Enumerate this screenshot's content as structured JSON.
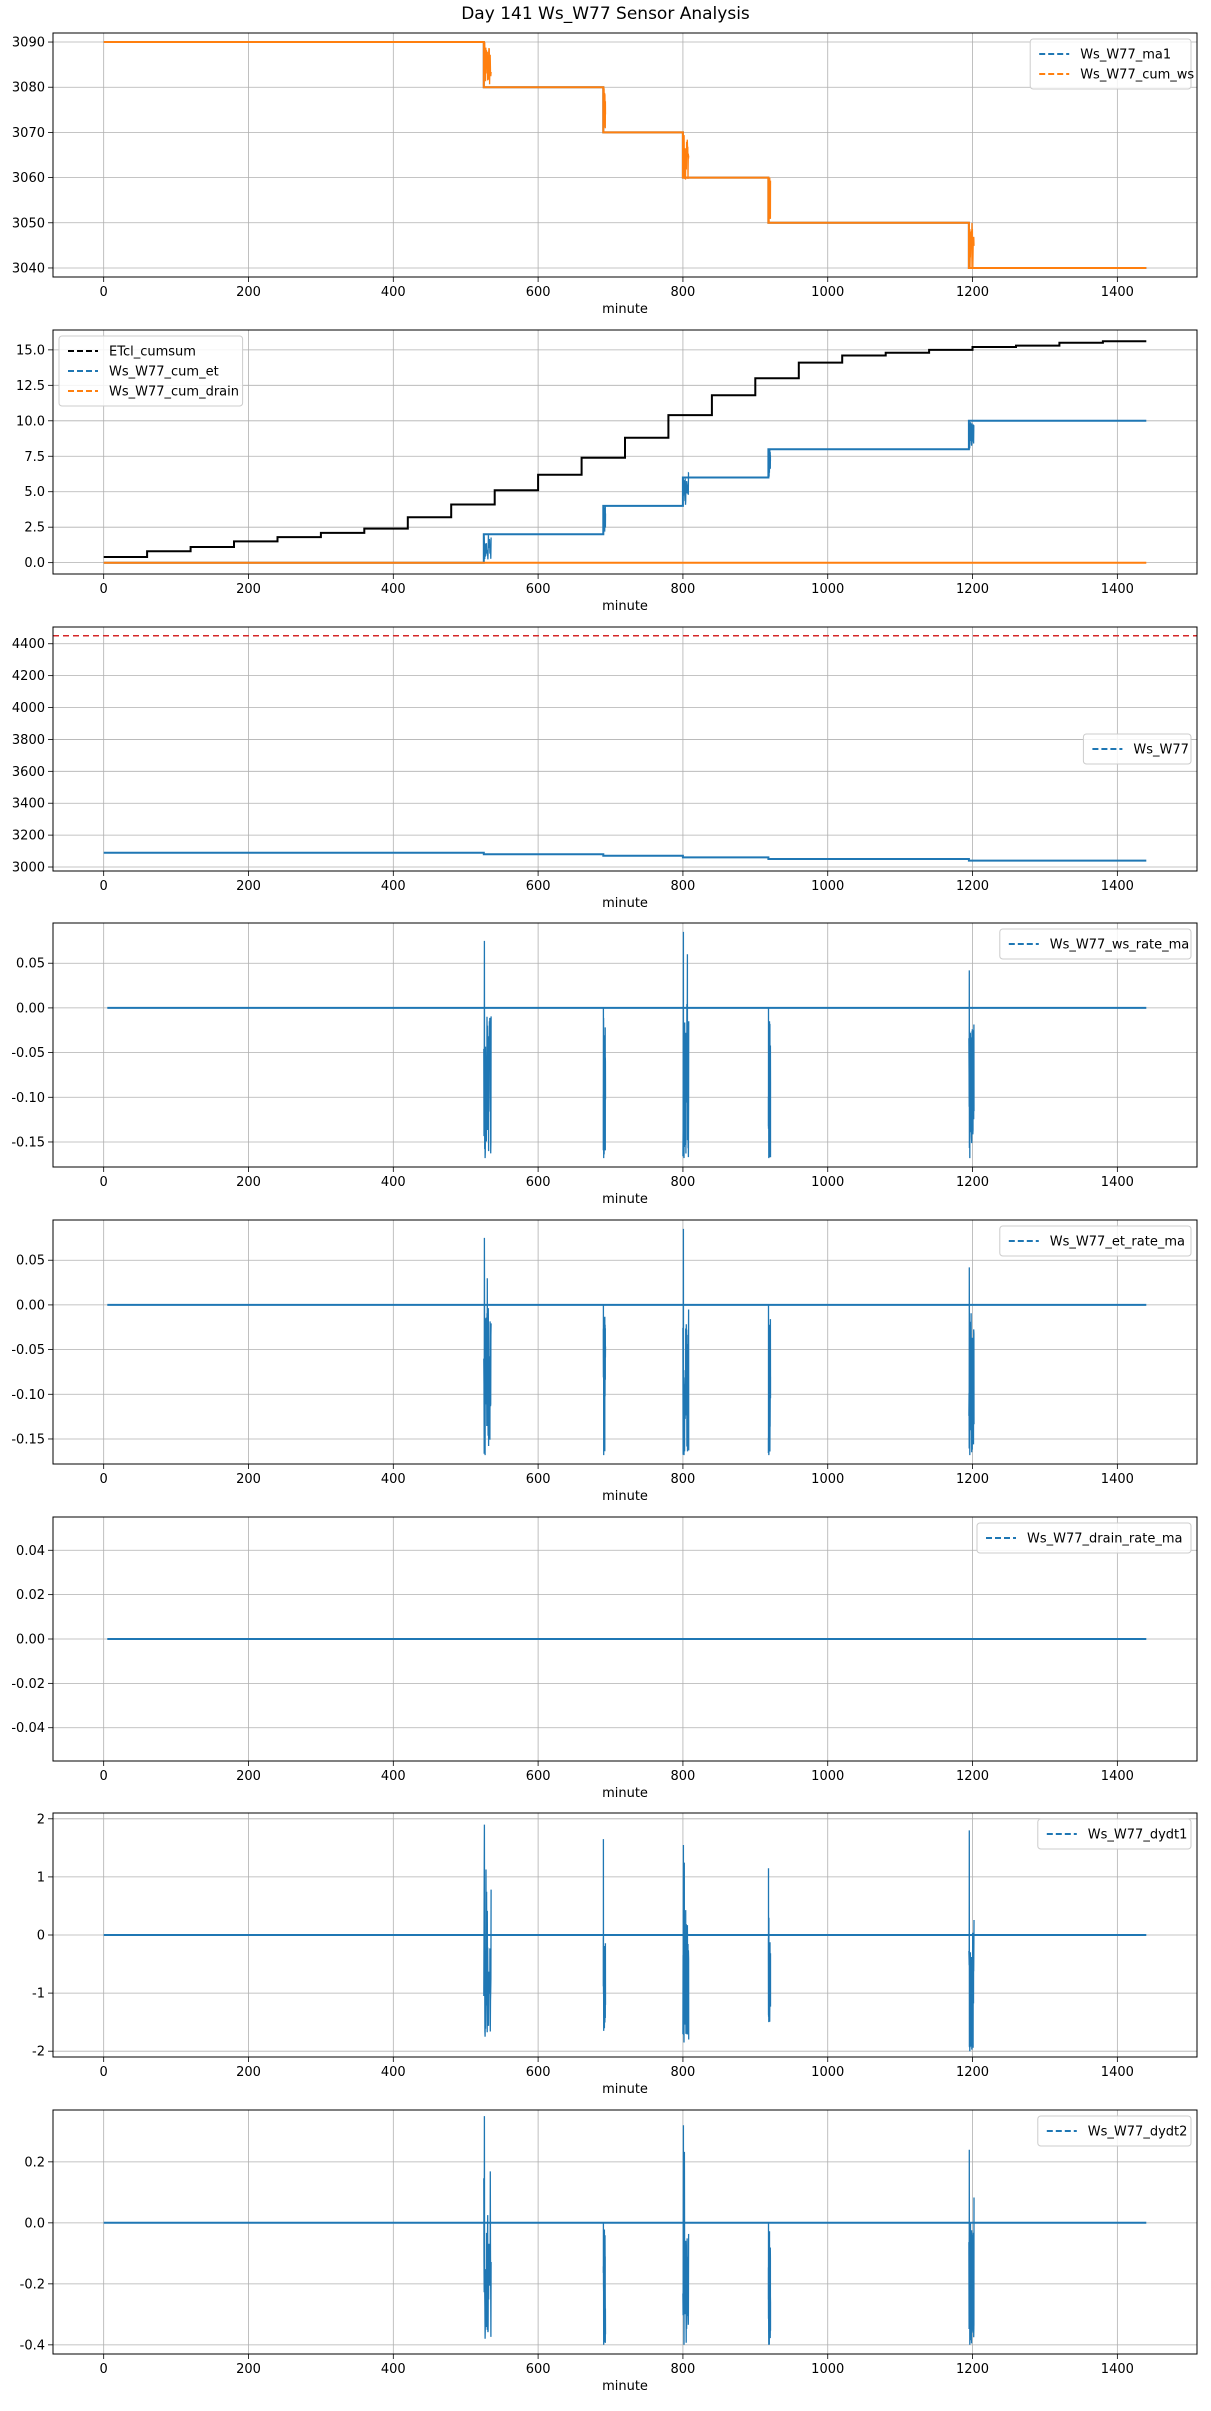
{
  "figure_title": "Day 141 Ws_W77 Sensor Analysis",
  "colors": {
    "blue": "#1f77b4",
    "orange": "#ff7f0e",
    "black": "#000000",
    "red": "#d62728",
    "grid": "#b0b0b0"
  },
  "chart_data": [
    {
      "type": "line",
      "xlabel": "minute",
      "ylabel": "",
      "xlim": [
        -70,
        1510
      ],
      "ylim": [
        3038,
        3092
      ],
      "xticks": [
        0,
        200,
        400,
        600,
        800,
        1000,
        1200,
        1400
      ],
      "yticks": [
        3040,
        3050,
        3060,
        3070,
        3080,
        3090
      ],
      "ytick_labels": [
        "3040",
        "3050",
        "3060",
        "3070",
        "3080",
        "3090"
      ],
      "grid": true,
      "legend_position": "upper-right",
      "series": [
        {
          "name": "Ws_W77_ma1",
          "color": "#1f77b4",
          "style": "dashed",
          "x": [
            0,
            525,
            525,
            690,
            690,
            800,
            800,
            918,
            918,
            1195,
            1195,
            1440
          ],
          "y": [
            3090,
            3090,
            3080,
            3080,
            3070,
            3070,
            3060,
            3060,
            3050,
            3050,
            3040,
            3040
          ]
        },
        {
          "name": "Ws_W77_cum_ws",
          "color": "#ff7f0e",
          "style": "dashed",
          "x": [
            0,
            525,
            525,
            690,
            690,
            800,
            800,
            918,
            918,
            1195,
            1195,
            1440
          ],
          "y": [
            3090,
            3090,
            3080,
            3080,
            3070,
            3070,
            3060,
            3060,
            3050,
            3050,
            3040,
            3040
          ],
          "noise_segments": [
            {
              "x": [
                525,
                535
              ],
              "y": [
                3079.5,
                3090
              ]
            },
            {
              "x": [
                690,
                693
              ],
              "y": [
                3070,
                3080
              ]
            },
            {
              "x": [
                800,
                808
              ],
              "y": [
                3059.5,
                3070
              ]
            },
            {
              "x": [
                918,
                921
              ],
              "y": [
                3050,
                3060
              ]
            },
            {
              "x": [
                1195,
                1202
              ],
              "y": [
                3040,
                3050
              ]
            }
          ]
        }
      ]
    },
    {
      "type": "line",
      "xlabel": "minute",
      "ylabel": "",
      "xlim": [
        -70,
        1510
      ],
      "ylim": [
        -0.8,
        16.4
      ],
      "xticks": [
        0,
        200,
        400,
        600,
        800,
        1000,
        1200,
        1400
      ],
      "yticks": [
        0,
        2.5,
        5,
        7.5,
        10,
        12.5,
        15
      ],
      "ytick_labels": [
        "0.0",
        "2.5",
        "5.0",
        "7.5",
        "10.0",
        "12.5",
        "15.0"
      ],
      "grid": true,
      "legend_position": "upper-left",
      "series": [
        {
          "name": "ETcl_cumsum",
          "color": "#000000",
          "style": "dashed",
          "x": [
            0,
            60,
            60,
            120,
            120,
            180,
            180,
            240,
            240,
            300,
            300,
            360,
            360,
            420,
            420,
            480,
            480,
            540,
            540,
            600,
            600,
            660,
            660,
            720,
            720,
            780,
            780,
            840,
            840,
            900,
            900,
            960,
            960,
            1020,
            1020,
            1080,
            1080,
            1140,
            1140,
            1200,
            1200,
            1260,
            1260,
            1320,
            1320,
            1380,
            1380,
            1440
          ],
          "y": [
            0.4,
            0.4,
            0.8,
            0.8,
            1.1,
            1.1,
            1.5,
            1.5,
            1.8,
            1.8,
            2.1,
            2.1,
            2.4,
            2.4,
            3.2,
            3.2,
            4.1,
            4.1,
            5.1,
            5.1,
            6.2,
            6.2,
            7.4,
            7.4,
            8.8,
            8.8,
            10.4,
            10.4,
            11.8,
            11.8,
            13.0,
            13.0,
            14.1,
            14.1,
            14.6,
            14.6,
            14.8,
            14.8,
            15.0,
            15.0,
            15.2,
            15.2,
            15.3,
            15.3,
            15.5,
            15.5,
            15.6,
            15.6
          ]
        },
        {
          "name": "Ws_W77_cum_et",
          "color": "#1f77b4",
          "style": "dashed",
          "x": [
            0,
            525,
            525,
            690,
            690,
            800,
            800,
            918,
            918,
            1195,
            1195,
            1440
          ],
          "y": [
            0,
            0,
            2,
            2,
            4,
            4,
            6,
            6,
            8,
            8,
            10,
            10
          ],
          "noise_segments": [
            {
              "x": [
                525,
                535
              ],
              "y": [
                0,
                2
              ]
            },
            {
              "x": [
                690,
                693
              ],
              "y": [
                2,
                4
              ]
            },
            {
              "x": [
                800,
                808
              ],
              "y": [
                4,
                6.5
              ]
            },
            {
              "x": [
                918,
                921
              ],
              "y": [
                6,
                8
              ]
            },
            {
              "x": [
                1195,
                1202
              ],
              "y": [
                8,
                10
              ]
            }
          ]
        },
        {
          "name": "Ws_W77_cum_drain",
          "color": "#ff7f0e",
          "style": "dashed",
          "x": [
            0,
            1440
          ],
          "y": [
            0,
            0
          ]
        }
      ]
    },
    {
      "type": "line",
      "xlabel": "minute",
      "ylabel": "",
      "xlim": [
        -70,
        1510
      ],
      "ylim": [
        2975,
        4505
      ],
      "xticks": [
        0,
        200,
        400,
        600,
        800,
        1000,
        1200,
        1400
      ],
      "yticks": [
        3000,
        3200,
        3400,
        3600,
        3800,
        4000,
        4200,
        4400
      ],
      "ytick_labels": [
        "3000",
        "3200",
        "3400",
        "3600",
        "3800",
        "4000",
        "4200",
        "4400"
      ],
      "grid": true,
      "legend_position": "center-right",
      "hline": {
        "y": 4450,
        "color": "#d62728",
        "style": "dashed"
      },
      "series": [
        {
          "name": "Ws_W77",
          "color": "#1f77b4",
          "style": "dashed",
          "x": [
            0,
            525,
            525,
            690,
            690,
            800,
            800,
            918,
            918,
            1195,
            1195,
            1440
          ],
          "y": [
            3090,
            3090,
            3080,
            3080,
            3070,
            3070,
            3060,
            3060,
            3050,
            3050,
            3040,
            3040
          ]
        }
      ]
    },
    {
      "type": "line",
      "xlabel": "minute",
      "ylabel": "",
      "xlim": [
        -70,
        1510
      ],
      "ylim": [
        -0.178,
        0.095
      ],
      "xticks": [
        0,
        200,
        400,
        600,
        800,
        1000,
        1200,
        1400
      ],
      "yticks": [
        -0.15,
        -0.1,
        -0.05,
        0.0,
        0.05
      ],
      "ytick_labels": [
        "-0.15",
        "-0.10",
        "-0.05",
        "0.00",
        "0.05"
      ],
      "grid": true,
      "legend_position": "upper-right",
      "series": [
        {
          "name": "Ws_W77_ws_rate_ma",
          "color": "#1f77b4",
          "style": "dashed",
          "x": [
            5,
            1440
          ],
          "y": [
            0,
            0
          ],
          "spikes": [
            {
              "x": [
                525,
                535
              ],
              "ymin": -0.168,
              "ymax": 0.075
            },
            {
              "x": [
                690,
                693
              ],
              "ymin": -0.168,
              "ymax": 0.0
            },
            {
              "x": [
                800,
                808
              ],
              "ymin": -0.168,
              "ymax": 0.085
            },
            {
              "x": [
                918,
                921
              ],
              "ymin": -0.168,
              "ymax": 0.0
            },
            {
              "x": [
                1195,
                1202
              ],
              "ymin": -0.168,
              "ymax": 0.042
            }
          ]
        }
      ]
    },
    {
      "type": "line",
      "xlabel": "minute",
      "ylabel": "",
      "xlim": [
        -70,
        1510
      ],
      "ylim": [
        -0.178,
        0.095
      ],
      "xticks": [
        0,
        200,
        400,
        600,
        800,
        1000,
        1200,
        1400
      ],
      "yticks": [
        -0.15,
        -0.1,
        -0.05,
        0.0,
        0.05
      ],
      "ytick_labels": [
        "-0.15",
        "-0.10",
        "-0.05",
        "0.00",
        "0.05"
      ],
      "grid": true,
      "legend_position": "upper-right",
      "series": [
        {
          "name": "Ws_W77_et_rate_ma",
          "color": "#1f77b4",
          "style": "dashed",
          "x": [
            5,
            1440
          ],
          "y": [
            0,
            0
          ],
          "spikes": [
            {
              "x": [
                525,
                535
              ],
              "ymin": -0.168,
              "ymax": 0.075
            },
            {
              "x": [
                690,
                693
              ],
              "ymin": -0.168,
              "ymax": 0.0
            },
            {
              "x": [
                800,
                808
              ],
              "ymin": -0.168,
              "ymax": 0.085
            },
            {
              "x": [
                918,
                921
              ],
              "ymin": -0.168,
              "ymax": 0.0
            },
            {
              "x": [
                1195,
                1202
              ],
              "ymin": -0.168,
              "ymax": 0.042
            }
          ]
        }
      ]
    },
    {
      "type": "line",
      "xlabel": "minute",
      "ylabel": "",
      "xlim": [
        -70,
        1510
      ],
      "ylim": [
        -0.055,
        0.055
      ],
      "xticks": [
        0,
        200,
        400,
        600,
        800,
        1000,
        1200,
        1400
      ],
      "yticks": [
        -0.04,
        -0.02,
        0.0,
        0.02,
        0.04
      ],
      "ytick_labels": [
        "-0.04",
        "-0.02",
        "0.00",
        "0.02",
        "0.04"
      ],
      "grid": true,
      "legend_position": "upper-right",
      "series": [
        {
          "name": "Ws_W77_drain_rate_ma",
          "color": "#1f77b4",
          "style": "dashed",
          "x": [
            5,
            1440
          ],
          "y": [
            0,
            0
          ]
        }
      ]
    },
    {
      "type": "line",
      "xlabel": "minute",
      "ylabel": "",
      "xlim": [
        -70,
        1510
      ],
      "ylim": [
        -2.1,
        2.1
      ],
      "xticks": [
        0,
        200,
        400,
        600,
        800,
        1000,
        1200,
        1400
      ],
      "yticks": [
        -2,
        -1,
        0,
        1,
        2
      ],
      "ytick_labels": [
        "-2",
        "-1",
        "0",
        "1",
        "2"
      ],
      "grid": true,
      "legend_position": "upper-right",
      "series": [
        {
          "name": "Ws_W77_dydt1",
          "color": "#1f77b4",
          "style": "dashed",
          "x": [
            0,
            1440
          ],
          "y": [
            0,
            0
          ],
          "spikes": [
            {
              "x": [
                525,
                535
              ],
              "ymin": -1.75,
              "ymax": 1.9
            },
            {
              "x": [
                690,
                693
              ],
              "ymin": -1.65,
              "ymax": 1.65
            },
            {
              "x": [
                800,
                808
              ],
              "ymin": -1.85,
              "ymax": 1.55
            },
            {
              "x": [
                918,
                921
              ],
              "ymin": -1.5,
              "ymax": 1.15
            },
            {
              "x": [
                1195,
                1202
              ],
              "ymin": -2.0,
              "ymax": 1.8
            }
          ]
        }
      ]
    },
    {
      "type": "line",
      "xlabel": "minute",
      "ylabel": "",
      "xlim": [
        -70,
        1510
      ],
      "ylim": [
        -0.43,
        0.37
      ],
      "xticks": [
        0,
        200,
        400,
        600,
        800,
        1000,
        1200,
        1400
      ],
      "yticks": [
        -0.4,
        -0.2,
        0.0,
        0.2
      ],
      "ytick_labels": [
        "-0.4",
        "-0.2",
        "0.0",
        "0.2"
      ],
      "grid": true,
      "legend_position": "upper-right",
      "series": [
        {
          "name": "Ws_W77_dydt2",
          "color": "#1f77b4",
          "style": "dashed",
          "x": [
            0,
            1440
          ],
          "y": [
            0,
            0
          ],
          "spikes": [
            {
              "x": [
                525,
                535
              ],
              "ymin": -0.38,
              "ymax": 0.35
            },
            {
              "x": [
                690,
                693
              ],
              "ymin": -0.4,
              "ymax": 0.0
            },
            {
              "x": [
                800,
                808
              ],
              "ymin": -0.4,
              "ymax": 0.32
            },
            {
              "x": [
                918,
                921
              ],
              "ymin": -0.4,
              "ymax": 0.0
            },
            {
              "x": [
                1195,
                1202
              ],
              "ymin": -0.4,
              "ymax": 0.24
            }
          ]
        }
      ]
    }
  ]
}
